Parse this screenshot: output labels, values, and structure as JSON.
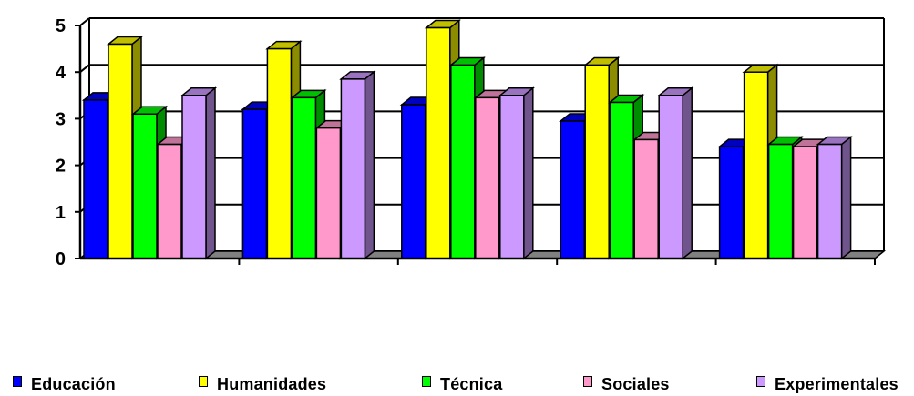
{
  "chart_data": {
    "type": "bar",
    "style": "3d-clustered-column",
    "categories": [
      "",
      "",
      "",
      "",
      ""
    ],
    "series": [
      {
        "name": "Educación",
        "color": "#0000FF",
        "values": [
          3.4,
          3.2,
          3.3,
          2.95,
          2.4
        ]
      },
      {
        "name": "Humanidades",
        "color": "#FFFF00",
        "values": [
          4.6,
          4.5,
          4.95,
          4.15,
          4.0
        ]
      },
      {
        "name": "Técnica",
        "color": "#00FF00",
        "values": [
          3.1,
          3.45,
          4.15,
          3.35,
          2.45
        ]
      },
      {
        "name": "Sociales",
        "color": "#FF99CC",
        "values": [
          2.45,
          2.8,
          3.45,
          2.55,
          2.4
        ]
      },
      {
        "name": "Experimentales",
        "color": "#CC99FF",
        "values": [
          3.5,
          3.85,
          3.5,
          3.5,
          2.45
        ]
      }
    ],
    "ylim": [
      0,
      5
    ],
    "yticks": [
      "0",
      "1",
      "2",
      "3",
      "4",
      "5"
    ],
    "grid": true,
    "legend_position": "bottom",
    "title": "",
    "xlabel": "",
    "ylabel": ""
  }
}
